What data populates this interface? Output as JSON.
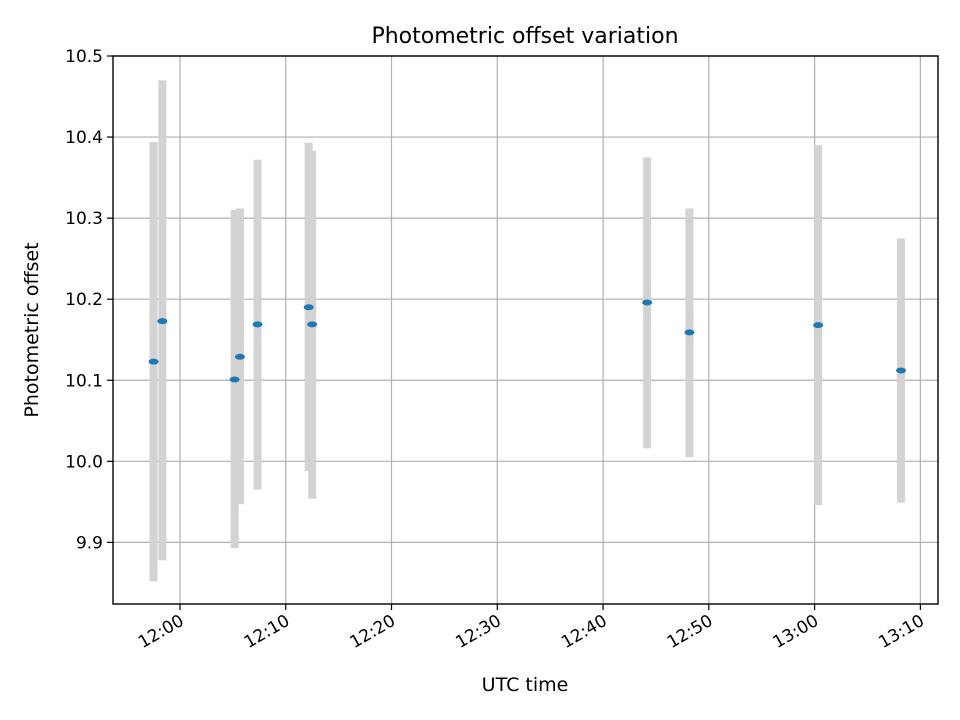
{
  "chart_data": {
    "type": "scatter",
    "title": "Photometric offset variation",
    "xlabel": "UTC time",
    "ylabel": "Photometric offset",
    "grid": true,
    "xlim": [
      "11:53:40",
      "13:11:40"
    ],
    "ylim": [
      9.824,
      10.5
    ],
    "x_ticks": [
      "12:00",
      "12:10",
      "12:20",
      "12:30",
      "12:40",
      "12:50",
      "13:00",
      "13:10"
    ],
    "y_ticks": [
      "9.9",
      "10.0",
      "10.1",
      "10.2",
      "10.3",
      "10.4",
      "10.5"
    ],
    "series": [
      {
        "style": "points with vertical error bars",
        "marker_color": "#1f77b4",
        "errorbar_color": "#d3d3d3",
        "points": [
          {
            "time": "11:57:30",
            "y": 10.123,
            "ylow": 9.852,
            "yhigh": 10.394
          },
          {
            "time": "11:58:20",
            "y": 10.173,
            "ylow": 9.878,
            "yhigh": 10.47
          },
          {
            "time": "12:05:10",
            "y": 10.101,
            "ylow": 9.893,
            "yhigh": 10.31
          },
          {
            "time": "12:05:40",
            "y": 10.129,
            "ylow": 9.947,
            "yhigh": 10.312
          },
          {
            "time": "12:07:20",
            "y": 10.169,
            "ylow": 9.965,
            "yhigh": 10.372
          },
          {
            "time": "12:12:10",
            "y": 10.19,
            "ylow": 9.988,
            "yhigh": 10.393
          },
          {
            "time": "12:12:30",
            "y": 10.169,
            "ylow": 9.954,
            "yhigh": 10.383
          },
          {
            "time": "12:44:10",
            "y": 10.196,
            "ylow": 10.016,
            "yhigh": 10.375
          },
          {
            "time": "12:48:10",
            "y": 10.159,
            "ylow": 10.005,
            "yhigh": 10.312
          },
          {
            "time": "13:00:20",
            "y": 10.168,
            "ylow": 9.946,
            "yhigh": 10.39
          },
          {
            "time": "13:08:10",
            "y": 10.112,
            "ylow": 9.949,
            "yhigh": 10.275
          }
        ]
      }
    ]
  }
}
